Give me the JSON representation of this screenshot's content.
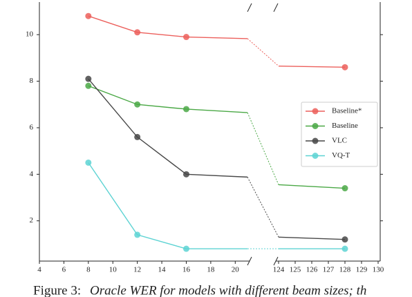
{
  "chart_data": {
    "type": "line",
    "x": [
      8,
      12,
      16,
      21,
      124,
      128
    ],
    "xlim": [
      4,
      21
    ],
    "xticks": [
      4,
      6,
      8,
      10,
      12,
      14,
      16,
      18,
      20
    ],
    "x2lim": [
      124,
      130
    ],
    "x2ticks": [
      124,
      125,
      126,
      127,
      128,
      129,
      130
    ],
    "ylim": [
      0.27,
      11.4
    ],
    "yticks": [
      2,
      4,
      6,
      8,
      10
    ],
    "legend": "right",
    "series": [
      {
        "name": "Baseline*",
        "color": "#ec5f5b",
        "values": [
          10.8,
          10.1,
          9.9,
          9.83,
          8.65,
          8.6
        ]
      },
      {
        "name": "Baseline",
        "color": "#4aa845",
        "values": [
          7.8,
          7.0,
          6.8,
          6.65,
          3.55,
          3.4
        ]
      },
      {
        "name": "VLC",
        "color": "#474747",
        "values": [
          8.1,
          5.6,
          4.0,
          3.88,
          1.3,
          1.2
        ]
      },
      {
        "name": "VQ-T",
        "color": "#5dd3d3",
        "values": [
          4.5,
          1.4,
          0.8,
          0.8,
          0.8,
          0.8
        ]
      }
    ],
    "caption_label": "Figure 3:",
    "caption_text": "Oracle WER for models with different beam sizes; th"
  }
}
